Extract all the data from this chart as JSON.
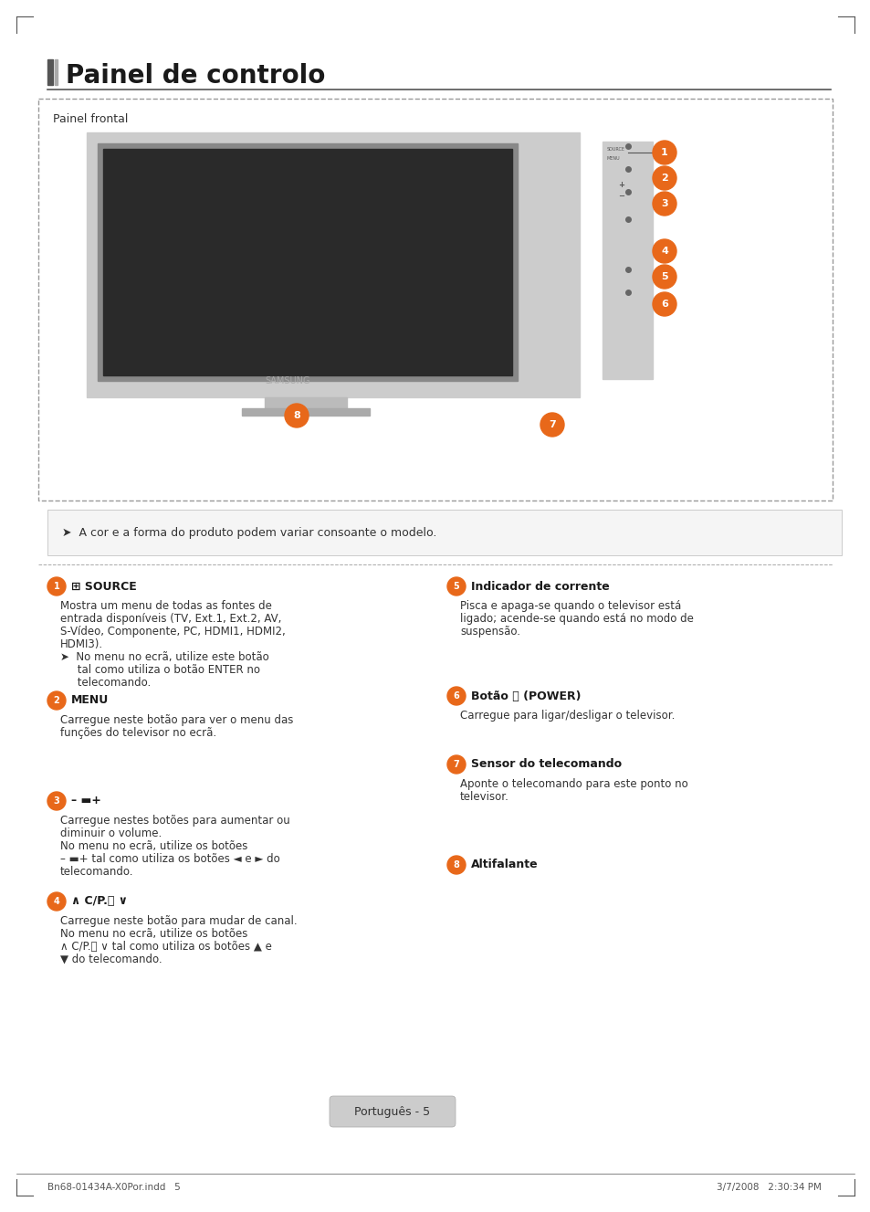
{
  "title": "Painel de controlo",
  "bg_color": "#ffffff",
  "title_color": "#1a1a1a",
  "panel_label": "Painel frontal",
  "note_text": "➤  A cor e a forma do produto podem variar consoante o modelo.",
  "footer_left": "Bn68-01434A-X0Por.indd   5",
  "footer_right": "3/7/2008   2:30:34 PM",
  "page_label": "Português - 5",
  "items": [
    {
      "num": "1",
      "title": "⊞ SOURCE",
      "lines": [
        "Mostra um menu de todas as fontes de",
        "entrada disponíveis (TV, Ext.1, Ext.2, AV,",
        "S-Vídeo, Componente, PC, HDMI1, HDMI2,",
        "HDMI3).",
        "➤  No menu no ecrã, utilize este botão",
        "     tal como utiliza o botão ENTER no",
        "     telecomando."
      ],
      "bold_parts": [
        "(TV, Ext.1, Ext.2, AV,",
        "S-Vídeo, Componente, PC, HDMI1, HDMI2,",
        "HDMI3).",
        "ENTER"
      ]
    },
    {
      "num": "2",
      "title": "MENU",
      "lines": [
        "Carregue neste botão para ver o menu das",
        "funções do televisor no ecrã."
      ],
      "bold_parts": []
    },
    {
      "num": "3",
      "title": "– ▬+",
      "lines": [
        "Carregue nestes botões para aumentar ou",
        "diminuir o volume.",
        "No menu no ecrã, utilize os botões",
        "– ▬+ tal como utiliza os botões ◄ e ► do",
        "telecomando."
      ],
      "bold_parts": [
        "◄",
        "►"
      ]
    },
    {
      "num": "4",
      "title": "∧ C/P.\u0000 ∨",
      "lines": [
        "Carregue neste botão para mudar de canal.",
        "No menu no ecrã, utilize os botões",
        "∧ C/P.\u0000 ∨ tal como utiliza os botões ▲ e",
        "▼ do telecomando."
      ],
      "bold_parts": [
        "▲",
        "▼"
      ]
    },
    {
      "num": "5",
      "title": "Indicador de corrente",
      "lines": [
        "Pisca e apaga-se quando o televisor está",
        "ligado; acende-se quando está no modo de",
        "suspensão."
      ],
      "bold_parts": []
    },
    {
      "num": "6",
      "title": "Botão ⏻ (POWER)",
      "lines": [
        "Carregue para ligar/desligar o televisor."
      ],
      "bold_parts": []
    },
    {
      "num": "7",
      "title": "Sensor do telecomando",
      "lines": [
        "Aponte o telecomando para este ponto no",
        "televisor."
      ],
      "bold_parts": []
    },
    {
      "num": "8",
      "title": "Altifalante",
      "lines": [],
      "bold_parts": []
    }
  ]
}
